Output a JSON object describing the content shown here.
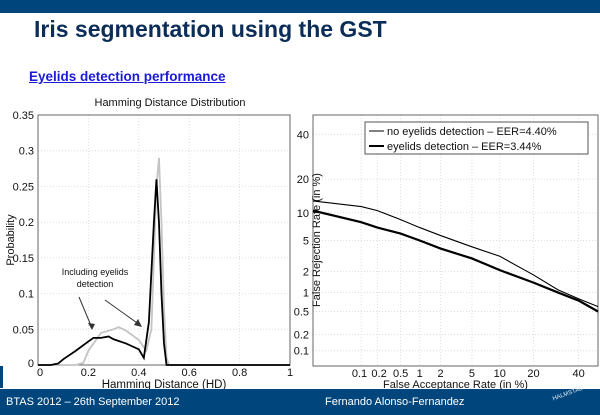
{
  "slide": {
    "title": "Iris segmentation using the GST",
    "subtitle": "Eyelids detection performance",
    "footer_left": "BTAS 2012 – 26th September 2012",
    "footer_right": "Fernando Alonso-Fernandez",
    "logo_text": "HALMSTAD"
  },
  "colors": {
    "header": "#00457c",
    "title": "#0b2d57",
    "subtitle": "#1a1ad8"
  },
  "chart_data": [
    {
      "type": "line",
      "title": "Hamming Distance Distribution",
      "xlabel": "Hamming Distance (HD)",
      "ylabel": "Probability",
      "xlim": [
        0,
        1
      ],
      "ylim": [
        0,
        0.35
      ],
      "grid": true,
      "xticks": [
        "0",
        "0.2",
        "0.4",
        "0.6",
        "0.8",
        "1"
      ],
      "yticks": [
        "0",
        "0.05",
        "0.1",
        "0.15",
        "0.2",
        "0.25",
        "0.3",
        "0.35"
      ],
      "annotation": "Including eyelids detection",
      "series": [
        {
          "color": "#c4c4c4",
          "x": [
            0,
            0.15,
            0.18,
            0.2,
            0.25,
            0.3,
            0.32,
            0.35,
            0.4,
            0.43,
            0.45,
            0.46,
            0.47,
            0.48,
            0.49,
            0.5,
            0.51,
            0.52,
            1
          ],
          "y": [
            0,
            0,
            0.003,
            0.02,
            0.045,
            0.05,
            0.053,
            0.048,
            0.035,
            0.02,
            0.05,
            0.15,
            0.25,
            0.29,
            0.2,
            0.08,
            0.01,
            0,
            0
          ]
        },
        {
          "color": "#000000",
          "x": [
            0,
            0.05,
            0.08,
            0.1,
            0.15,
            0.2,
            0.22,
            0.25,
            0.28,
            0.3,
            0.35,
            0.4,
            0.42,
            0.44,
            0.46,
            0.47,
            0.48,
            0.49,
            0.5,
            0.51,
            0.55,
            1
          ],
          "y": [
            0,
            0,
            0.002,
            0.008,
            0.02,
            0.033,
            0.038,
            0.038,
            0.04,
            0.036,
            0.03,
            0.022,
            0.01,
            0.06,
            0.2,
            0.26,
            0.2,
            0.1,
            0.03,
            0,
            0,
            0
          ]
        }
      ]
    },
    {
      "type": "line",
      "scale": "normal-deviate (DET)",
      "xlabel": "False Acceptance Rate (in %)",
      "ylabel": "False Rejection Rate (in %)",
      "xlim": [
        0.01,
        50
      ],
      "ylim": [
        0.05,
        50
      ],
      "grid": true,
      "legend": "top",
      "xticks": [
        0.1,
        0.2,
        0.5,
        1,
        2,
        5,
        10,
        20,
        40
      ],
      "yticks": [
        0.1,
        0.2,
        0.5,
        1,
        2,
        5,
        10,
        20,
        40
      ],
      "series": [
        {
          "name": "no eyelids detection – EER=4.40%",
          "width": 1,
          "x": [
            0.01,
            0.1,
            0.2,
            0.5,
            1,
            2,
            5,
            10,
            20,
            30,
            40,
            50
          ],
          "y": [
            13,
            11.5,
            10.5,
            8.5,
            7,
            5.7,
            4.2,
            3.2,
            1.8,
            1.1,
            0.8,
            0.6
          ]
        },
        {
          "name": "eyelids detection – EER=3.44%",
          "width": 2,
          "x": [
            0.01,
            0.1,
            0.2,
            0.5,
            1,
            2,
            5,
            10,
            20,
            30,
            40,
            50
          ],
          "y": [
            10.5,
            8,
            7,
            6,
            5,
            4,
            3,
            2.1,
            1.4,
            1.0,
            0.75,
            0.5
          ]
        }
      ]
    }
  ]
}
